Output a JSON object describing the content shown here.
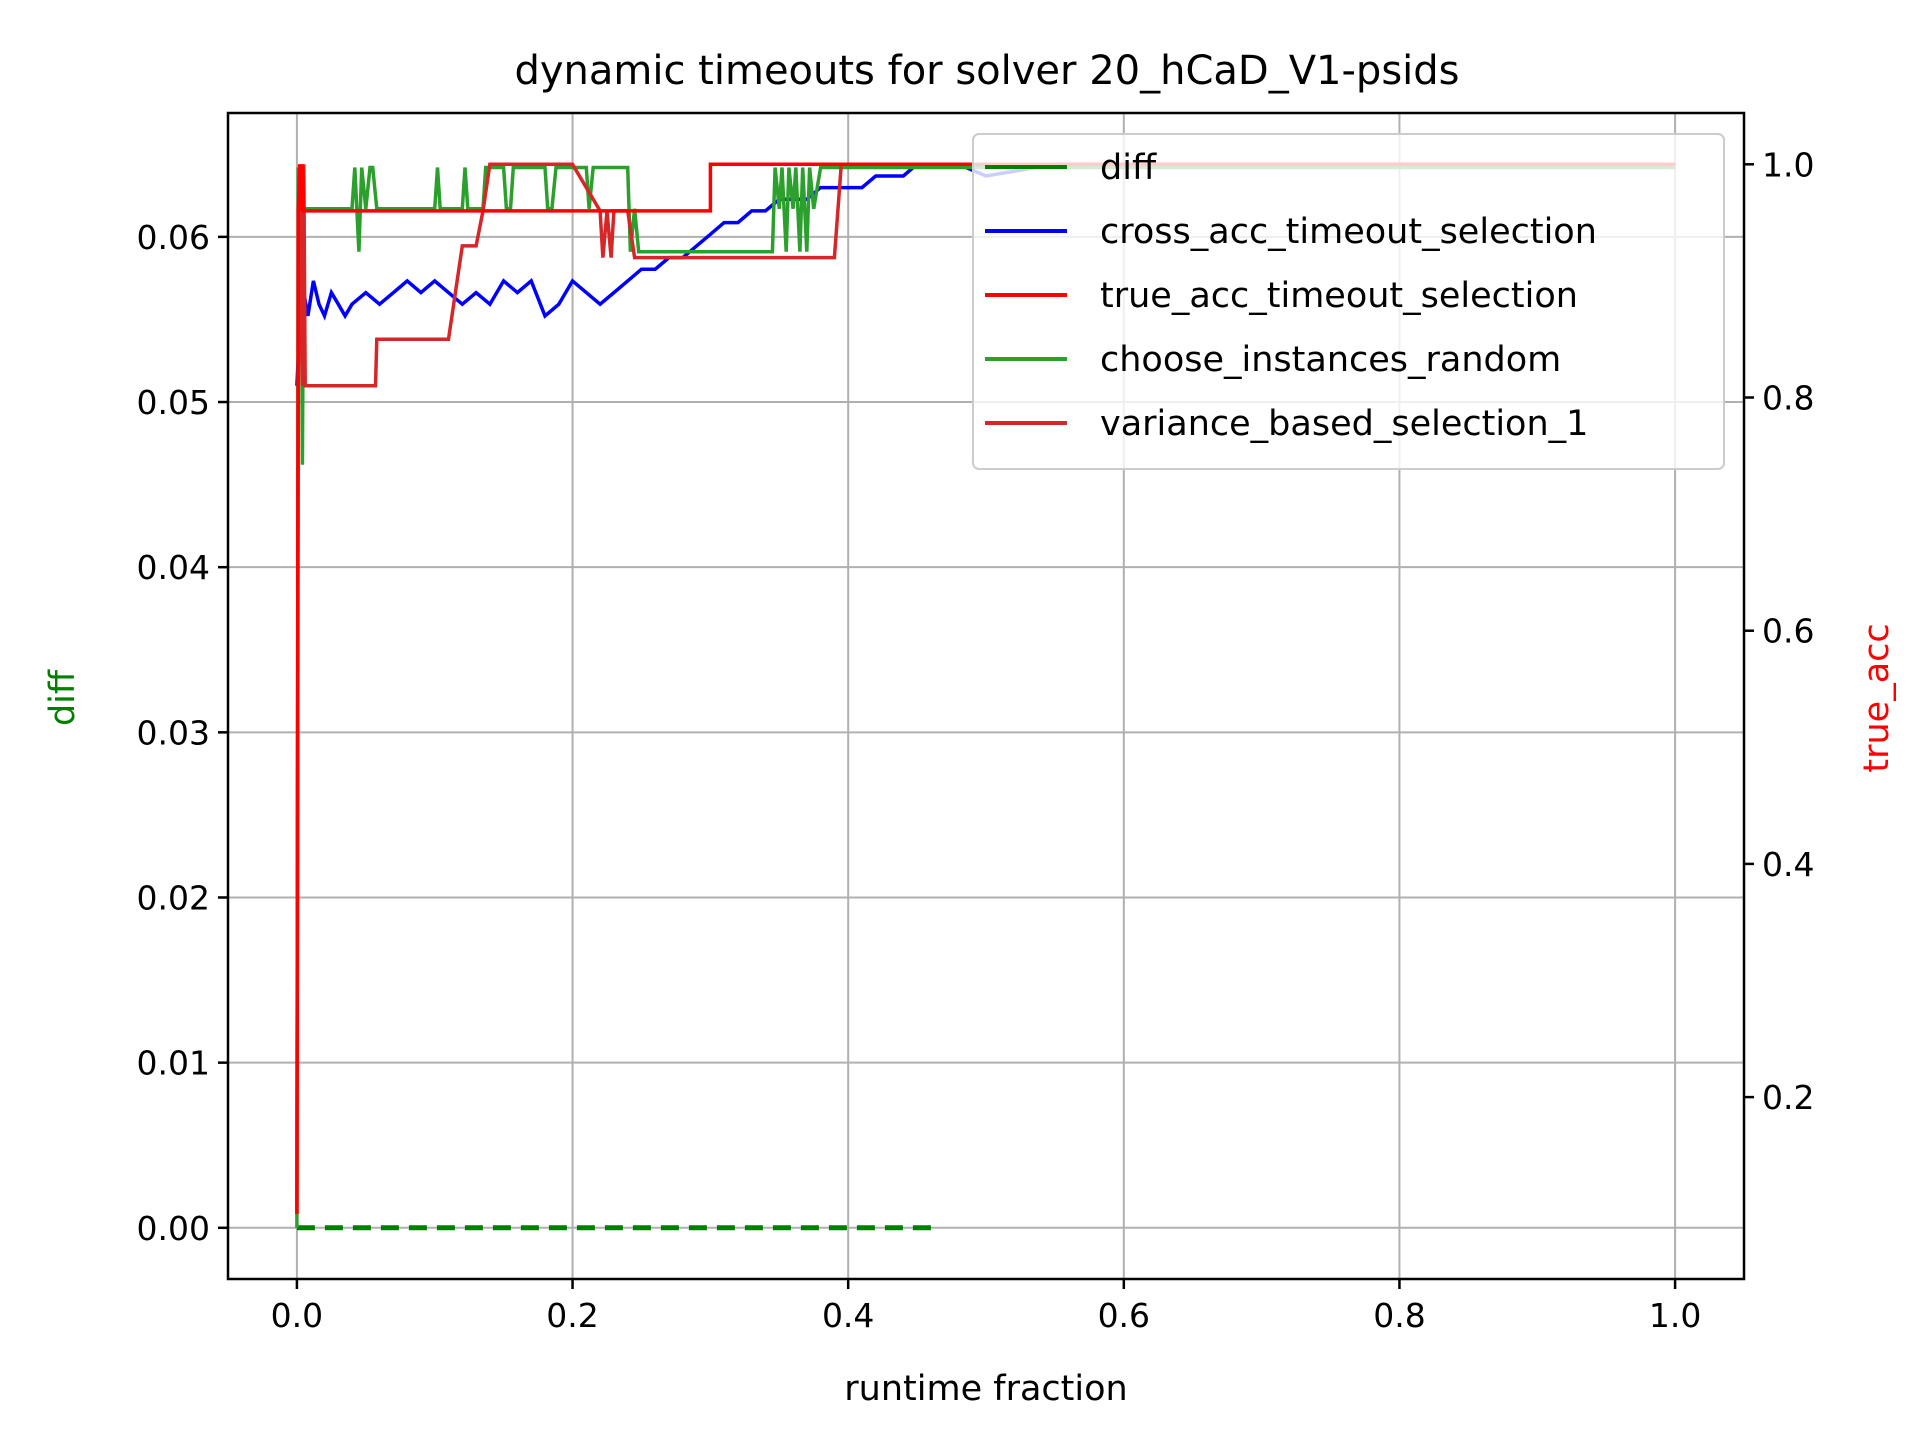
{
  "chart_data": {
    "type": "line",
    "title": "dynamic timeouts for solver 20_hCaD_V1-psids",
    "xlabel": "runtime fraction",
    "ylabel_left": "diff",
    "ylabel_right": "true_acc",
    "xlim": [
      -0.05,
      1.05
    ],
    "ylim_left": [
      -0.0031,
      0.0675
    ],
    "ylim_right": [
      0.044,
      1.044
    ],
    "x_ticks": [
      "0.0",
      "0.2",
      "0.4",
      "0.6",
      "0.8",
      "1.0"
    ],
    "y_ticks_left": [
      "0.00",
      "0.01",
      "0.02",
      "0.03",
      "0.04",
      "0.05",
      "0.06"
    ],
    "y_ticks_right": [
      "0.2",
      "0.4",
      "0.6",
      "0.8",
      "1.0"
    ],
    "grid": true,
    "legend_position": "top-right",
    "colors": {
      "diff": "#008000",
      "cross_acc_timeout_selection": "#0000ff",
      "true_acc_timeout_selection": "#ff0000",
      "choose_instances_random": "#2ca02c",
      "variance_based_selection_1": "#d62728",
      "ylabel_left": "#008000",
      "ylabel_right": "#ff0000"
    },
    "series": [
      {
        "name": "diff",
        "axis": "left",
        "style": "dashed-baseline",
        "x": [
          0.0,
          0.01,
          0.05,
          0.1,
          0.15,
          0.2,
          0.23,
          0.25,
          0.28,
          0.3,
          0.33,
          0.36,
          0.465
        ],
        "values": [
          0,
          0,
          0,
          0,
          0,
          0,
          0,
          0,
          0,
          0,
          0,
          0,
          0
        ]
      },
      {
        "name": "cross_acc_timeout_selection",
        "axis": "right",
        "x": [
          0.0,
          0.002,
          0.005,
          0.008,
          0.012,
          0.016,
          0.02,
          0.025,
          0.03,
          0.035,
          0.04,
          0.05,
          0.06,
          0.07,
          0.08,
          0.09,
          0.1,
          0.11,
          0.12,
          0.13,
          0.14,
          0.15,
          0.16,
          0.17,
          0.18,
          0.19,
          0.2,
          0.21,
          0.22,
          0.23,
          0.24,
          0.25,
          0.26,
          0.27,
          0.28,
          0.29,
          0.3,
          0.31,
          0.32,
          0.33,
          0.34,
          0.35,
          0.36,
          0.37,
          0.38,
          0.39,
          0.4,
          0.41,
          0.42,
          0.43,
          0.44,
          0.45,
          0.46,
          0.48,
          0.5,
          0.55,
          0.6,
          0.7,
          0.8,
          0.9,
          1.0
        ],
        "values": [
          0.81,
          0.86,
          0.89,
          0.87,
          0.9,
          0.88,
          0.87,
          0.89,
          0.88,
          0.87,
          0.88,
          0.89,
          0.88,
          0.89,
          0.9,
          0.89,
          0.9,
          0.89,
          0.88,
          0.89,
          0.88,
          0.9,
          0.89,
          0.9,
          0.87,
          0.88,
          0.9,
          0.89,
          0.88,
          0.89,
          0.9,
          0.91,
          0.91,
          0.92,
          0.92,
          0.93,
          0.94,
          0.95,
          0.95,
          0.96,
          0.96,
          0.97,
          0.97,
          0.97,
          0.98,
          0.98,
          0.98,
          0.98,
          0.99,
          0.99,
          0.99,
          1.0,
          1.0,
          1.0,
          0.99,
          1.0,
          1.0,
          1.0,
          1.0,
          1.0,
          1.0
        ]
      },
      {
        "name": "true_acc_timeout_selection",
        "axis": "right",
        "x": [
          0.0,
          0.001,
          0.002,
          0.003,
          0.004,
          0.005,
          0.006,
          0.007,
          0.3,
          0.3,
          1.0
        ],
        "values": [
          0.1,
          0.96,
          1.0,
          0.96,
          1.0,
          0.96,
          0.96,
          0.96,
          0.96,
          1.0,
          1.0
        ]
      },
      {
        "name": "choose_instances_random",
        "axis": "left",
        "x": [
          0.0,
          0.001,
          0.002,
          0.003,
          0.004,
          0.005,
          0.006,
          0.007,
          0.008,
          0.04,
          0.042,
          0.045,
          0.047,
          0.05,
          0.053,
          0.055,
          0.058,
          0.1,
          0.102,
          0.104,
          0.106,
          0.12,
          0.122,
          0.124,
          0.126,
          0.135,
          0.137,
          0.14,
          0.15,
          0.152,
          0.155,
          0.157,
          0.16,
          0.18,
          0.182,
          0.185,
          0.188,
          0.21,
          0.212,
          0.215,
          0.22,
          0.24,
          0.242,
          0.245,
          0.248,
          0.345,
          0.347,
          0.35,
          0.352,
          0.355,
          0.357,
          0.36,
          0.362,
          0.365,
          0.367,
          0.37,
          0.372,
          0.375,
          0.38,
          1.0
        ],
        "values": [
          0.0,
          0.0642,
          0.0555,
          0.0642,
          0.0462,
          0.0617,
          0.0617,
          0.0617,
          0.0617,
          0.0617,
          0.0642,
          0.0591,
          0.0642,
          0.0617,
          0.0642,
          0.0642,
          0.0617,
          0.0617,
          0.0642,
          0.0617,
          0.0617,
          0.0617,
          0.0642,
          0.0617,
          0.0617,
          0.0617,
          0.0642,
          0.0642,
          0.0642,
          0.0617,
          0.0617,
          0.0642,
          0.0642,
          0.0642,
          0.0617,
          0.0617,
          0.0642,
          0.0642,
          0.0617,
          0.0642,
          0.0642,
          0.0642,
          0.0591,
          0.0617,
          0.0591,
          0.0591,
          0.0642,
          0.0617,
          0.0642,
          0.0591,
          0.0642,
          0.0617,
          0.0642,
          0.0591,
          0.0642,
          0.0591,
          0.0642,
          0.0617,
          0.0642,
          0.0642
        ]
      },
      {
        "name": "variance_based_selection_1",
        "axis": "right",
        "x": [
          0.0,
          0.001,
          0.002,
          0.004,
          0.005,
          0.006,
          0.007,
          0.01,
          0.057,
          0.058,
          0.11,
          0.115,
          0.12,
          0.13,
          0.135,
          0.14,
          0.2,
          0.22,
          0.222,
          0.225,
          0.228,
          0.23,
          0.235,
          0.24,
          0.245,
          0.248,
          0.25,
          0.39,
          0.395,
          0.4,
          1.0
        ],
        "values": [
          0.1,
          0.81,
          1.0,
          0.81,
          1.0,
          0.81,
          0.81,
          0.81,
          0.81,
          0.85,
          0.85,
          0.89,
          0.93,
          0.93,
          0.96,
          1.0,
          1.0,
          0.96,
          0.92,
          0.96,
          0.92,
          0.96,
          0.96,
          0.96,
          0.92,
          0.92,
          0.92,
          0.92,
          1.0,
          1.0,
          1.0
        ]
      }
    ]
  }
}
